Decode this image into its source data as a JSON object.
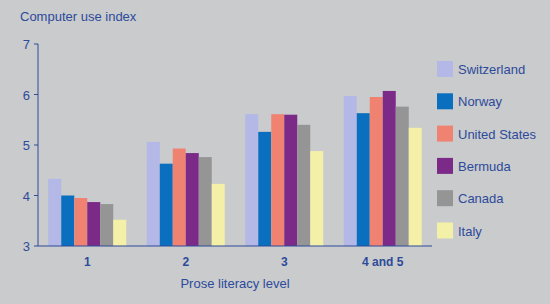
{
  "chart_data": {
    "type": "bar",
    "y_label": "Computer use index",
    "x_label": "Prose literacy level",
    "categories": [
      "1",
      "2",
      "3",
      "4 and 5"
    ],
    "series": [
      {
        "name": "Switzerland",
        "color": "#b3b8e6",
        "values": [
          4.33,
          5.06,
          5.61,
          5.97
        ]
      },
      {
        "name": "Norway",
        "color": "#0a6fbe",
        "values": [
          4.0,
          4.63,
          5.26,
          5.63
        ]
      },
      {
        "name": "United States",
        "color": "#f08272",
        "values": [
          3.95,
          4.93,
          5.61,
          5.95
        ]
      },
      {
        "name": "Bermuda",
        "color": "#7b2a88",
        "values": [
          3.87,
          4.84,
          5.6,
          6.07
        ]
      },
      {
        "name": "Canada",
        "color": "#959595",
        "values": [
          3.83,
          4.76,
          5.4,
          5.76
        ]
      },
      {
        "name": "Italy",
        "color": "#f5f0a8",
        "values": [
          3.52,
          4.23,
          4.88,
          5.34
        ]
      }
    ],
    "ylim": [
      3,
      7
    ],
    "yticks": [
      3,
      4,
      5,
      6,
      7
    ],
    "grid": false,
    "legend": "right"
  }
}
